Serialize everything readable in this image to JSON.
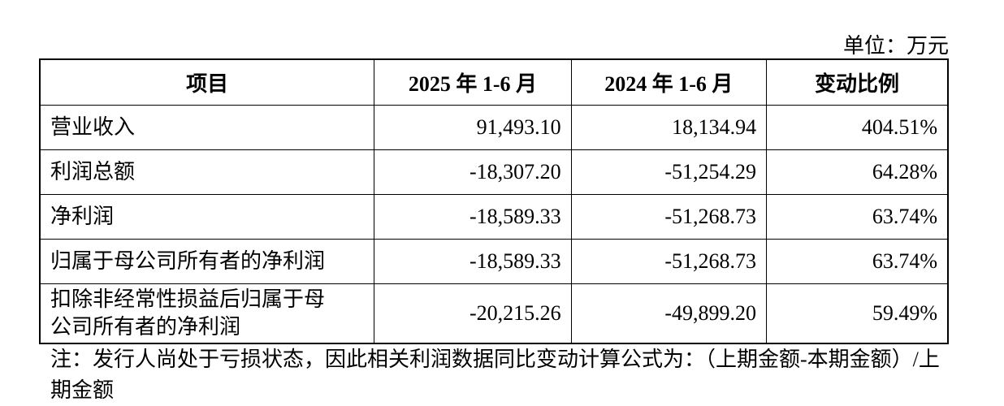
{
  "unit": "单位：万元",
  "table": {
    "header": [
      "项目",
      "2025 年 1-6 月",
      "2024 年 1-6 月",
      "变动比例"
    ],
    "rows": [
      [
        "营业收入",
        "91,493.10",
        "18,134.94",
        "404.51%"
      ],
      [
        "利润总额",
        "-18,307.20",
        "-51,254.29",
        "64.28%"
      ],
      [
        "净利润",
        "-18,589.33",
        "-51,268.73",
        "63.74%"
      ],
      [
        "归属于母公司所有者的净利润",
        "-18,589.33",
        "-51,268.73",
        "63.74%"
      ],
      [
        "扣除非经常性损益后归属于母公司所有者的净利润",
        "-20,215.26",
        "-49,899.20",
        "59.49%"
      ]
    ]
  },
  "note": "注：发行人尚处于亏损状态，因此相关利润数据同比变动计算公式为：（上期金额-本期金额）/上期金额"
}
